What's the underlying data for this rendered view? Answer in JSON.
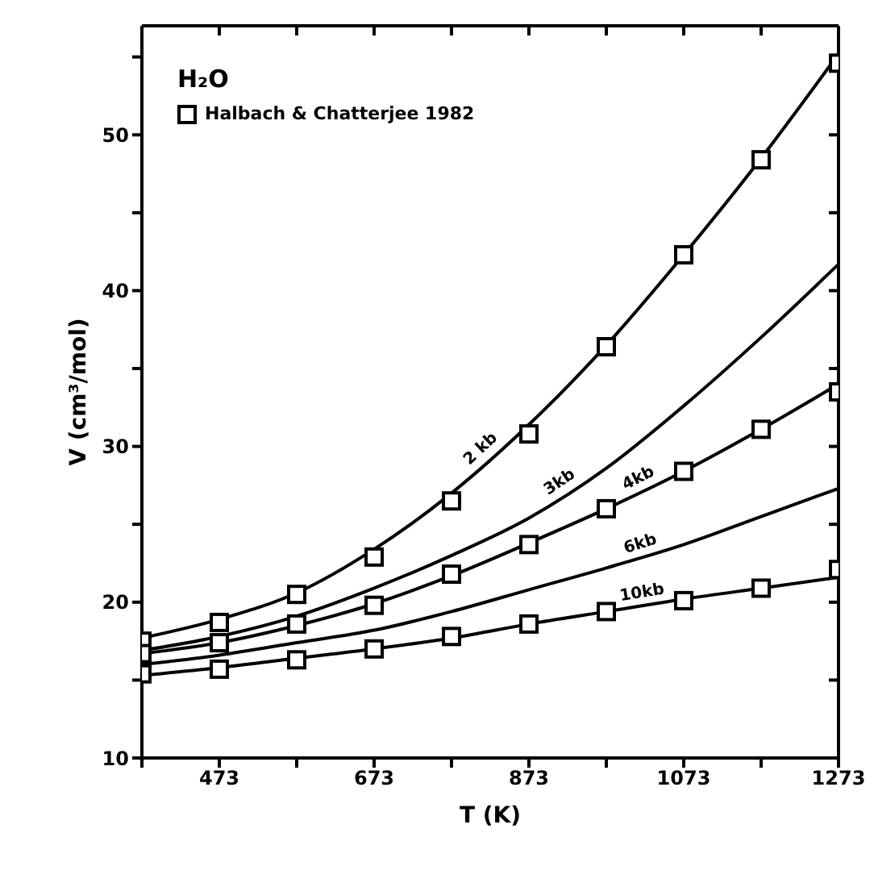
{
  "chart_data": {
    "type": "line",
    "title": "H₂O",
    "xlabel": "T (K)",
    "ylabel": "V (cm³/mol)",
    "x": [
      373,
      473,
      573,
      673,
      773,
      873,
      973,
      1073,
      1173,
      1273
    ],
    "series": [
      {
        "name": "2 kb",
        "color": "#000000",
        "values": [
          17.7,
          18.9,
          20.6,
          23.4,
          27.0,
          31.4,
          36.5,
          42.3,
          48.5,
          55.2
        ]
      },
      {
        "name": "3kb",
        "color": "#000000",
        "values": [
          16.9,
          17.8,
          19.1,
          20.9,
          23.0,
          25.4,
          28.6,
          32.6,
          37.0,
          41.7
        ]
      },
      {
        "name": "4kb",
        "color": "#000000",
        "values": [
          16.7,
          17.4,
          18.5,
          19.9,
          21.7,
          23.8,
          26.0,
          28.4,
          31.1,
          34.0
        ]
      },
      {
        "name": "6kb",
        "color": "#000000",
        "values": [
          16.0,
          16.6,
          17.4,
          18.2,
          19.4,
          20.8,
          22.2,
          23.7,
          25.5,
          27.3
        ]
      },
      {
        "name": "10kb",
        "color": "#000000",
        "values": [
          15.3,
          15.8,
          16.4,
          17.0,
          17.7,
          18.6,
          19.4,
          20.2,
          20.9,
          21.6
        ]
      },
      {
        "name": "Halbach & Chatterjee 1982",
        "type": "scatter",
        "marker": "square",
        "color": "#000000",
        "x": [
          373,
          473,
          573,
          673,
          773,
          873,
          973,
          1073,
          1173,
          1273,
          373,
          473,
          573,
          673,
          773,
          873,
          973,
          1073,
          1173,
          1273,
          373,
          473,
          573,
          673,
          773,
          873,
          973,
          1073,
          1173,
          1273
        ],
        "values": [
          17.5,
          18.7,
          20.5,
          22.9,
          26.5,
          30.8,
          36.4,
          42.3,
          48.4,
          54.6,
          16.7,
          17.4,
          18.6,
          19.8,
          21.8,
          23.7,
          26.0,
          28.4,
          31.1,
          33.5,
          15.4,
          15.7,
          16.3,
          17.0,
          17.8,
          18.6,
          19.4,
          20.1,
          20.9,
          22.1
        ]
      }
    ],
    "xlim": [
      373,
      1273
    ],
    "xticks": [
      {
        "value": 373,
        "label": null
      },
      473,
      {
        "value": 573,
        "label": null
      },
      673,
      {
        "value": 773,
        "label": null
      },
      873,
      {
        "value": 973,
        "label": null
      },
      1073,
      {
        "value": 1173,
        "label": null
      },
      1273
    ],
    "ylim": [
      10,
      57
    ],
    "yticks": [
      10,
      {
        "value": 15,
        "label": null
      },
      20,
      {
        "value": 25,
        "label": null
      },
      30,
      {
        "value": 35,
        "label": null
      },
      40,
      {
        "value": 45,
        "label": null
      },
      50,
      {
        "value": 55,
        "label": null
      }
    ],
    "legend": "top left",
    "marker": "none",
    "line_style": "solid"
  }
}
